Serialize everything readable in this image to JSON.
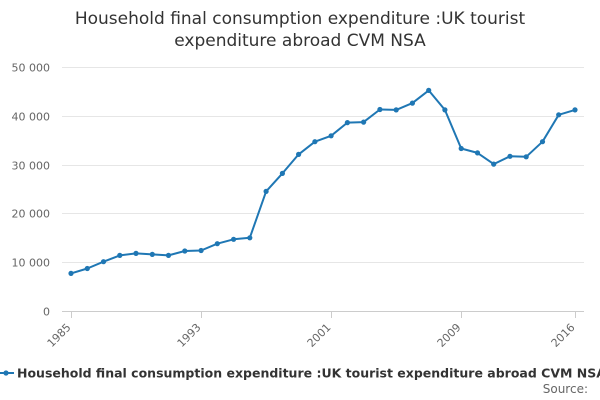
{
  "chart_data": {
    "type": "line",
    "title_lines": [
      "Household final consumption expenditure :UK tourist",
      "expenditure abroad CVM NSA"
    ],
    "xlabel": "",
    "ylabel": "",
    "x": [
      1985,
      1986,
      1987,
      1988,
      1989,
      1990,
      1991,
      1992,
      1993,
      1994,
      1995,
      1996,
      1997,
      1998,
      1999,
      2000,
      2001,
      2002,
      2003,
      2004,
      2005,
      2006,
      2007,
      2008,
      2009,
      2010,
      2011,
      2012,
      2013,
      2014,
      2015,
      2016
    ],
    "series": [
      {
        "name": "Household final consumption expenditure :UK tourist expenditure abroad CVM NSA",
        "color": "#1f77b4",
        "values": [
          7700,
          8700,
          10100,
          11400,
          11800,
          11600,
          11400,
          12300,
          12400,
          13800,
          14700,
          15000,
          24500,
          28200,
          32100,
          34700,
          35900,
          38600,
          38700,
          41300,
          41200,
          42600,
          45200,
          41200,
          33300,
          32400,
          30100,
          31700,
          31600,
          34700,
          40200,
          41200
        ]
      }
    ],
    "ylim": [
      0,
      50000
    ],
    "y_ticks": [
      0,
      10000,
      20000,
      30000,
      40000,
      50000
    ],
    "y_tick_labels": [
      "0",
      "10 000",
      "20 000",
      "30 000",
      "40 000",
      "50 000"
    ],
    "x_ticks": [
      1985,
      1993,
      2001,
      2009,
      2016
    ],
    "x_tick_labels": [
      "1985",
      "1993",
      "2001",
      "2009",
      "2016"
    ],
    "grid": true,
    "legend_position": "bottom",
    "source_label": "Source:"
  }
}
